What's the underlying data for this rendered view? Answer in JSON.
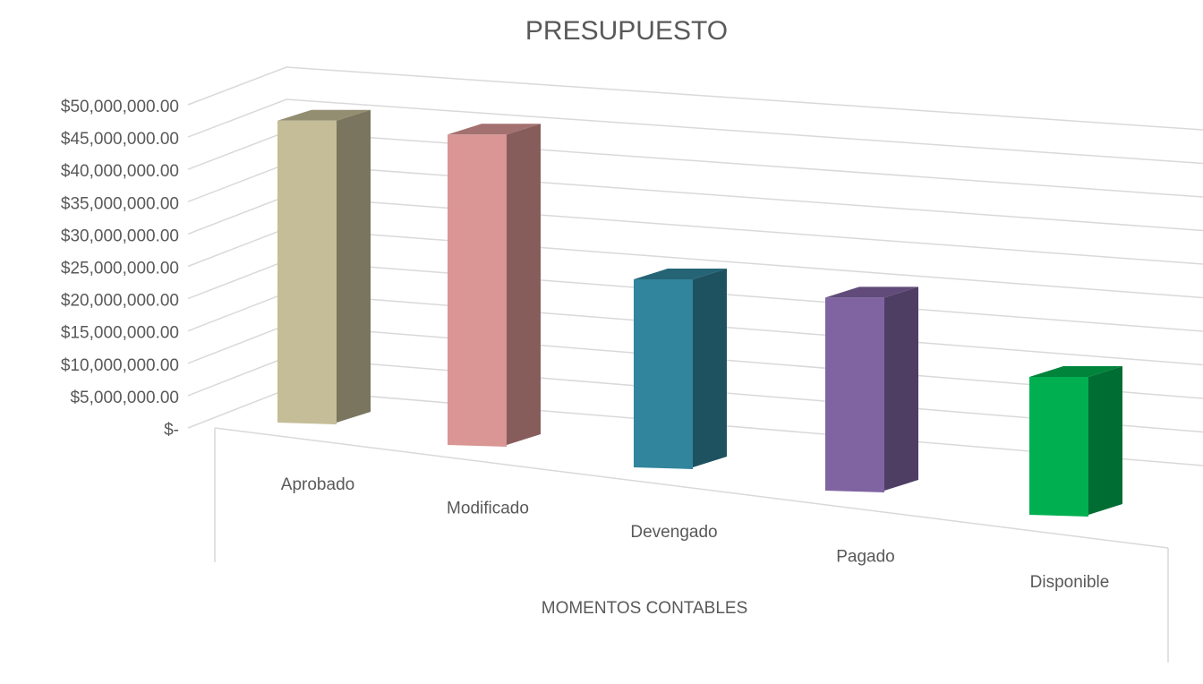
{
  "chart_data": {
    "type": "bar3d",
    "title": "PRESUPUESTO",
    "x_label": "MOMENTOS CONTABLES",
    "categories": [
      "Aprobado",
      "Modificado",
      "Devengado",
      "Pagado",
      "Disponible"
    ],
    "values": [
      47500000,
      47500000,
      28000000,
      28000000,
      19500000
    ],
    "colors": [
      "#c4bd97",
      "#d99694",
      "#31859c",
      "#8064a2",
      "#00b050"
    ],
    "ylim": [
      0,
      50000000
    ],
    "yticks": [
      {
        "value": 0,
        "label": "$-"
      },
      {
        "value": 5000000,
        "label": "$5,000,000.00"
      },
      {
        "value": 10000000,
        "label": "$10,000,000.00"
      },
      {
        "value": 15000000,
        "label": "$15,000,000.00"
      },
      {
        "value": 20000000,
        "label": "$20,000,000.00"
      },
      {
        "value": 25000000,
        "label": "$25,000,000.00"
      },
      {
        "value": 30000000,
        "label": "$30,000,000.00"
      },
      {
        "value": 35000000,
        "label": "$35,000,000.00"
      },
      {
        "value": 40000000,
        "label": "$40,000,000.00"
      },
      {
        "value": 45000000,
        "label": "$45,000,000.00"
      },
      {
        "value": 50000000,
        "label": "$50,000,000.00"
      }
    ],
    "grid": true
  }
}
